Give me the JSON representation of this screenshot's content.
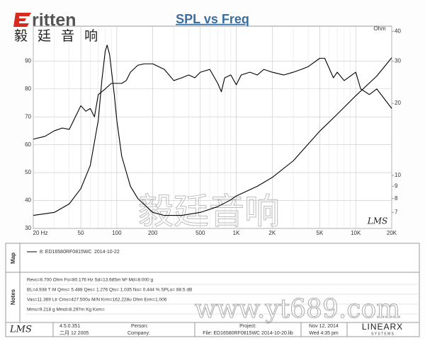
{
  "chart_data": {
    "type": "line",
    "title": "SPL vs Freq",
    "x_scale": "log",
    "y2_scale": "log",
    "xlim": [
      20,
      20000
    ],
    "xticks": [
      {
        "value": 20,
        "label": "20 Hz"
      },
      50,
      100,
      200,
      500,
      {
        "value": 1000,
        "label": "1K"
      },
      {
        "value": 2000,
        "label": "2K"
      },
      {
        "value": 5000,
        "label": "5K"
      },
      {
        "value": 10000,
        "label": "10K"
      },
      {
        "value": 20000,
        "label": "20K"
      }
    ],
    "ylim": [
      30,
      102.5
    ],
    "yticks": [
      30,
      40,
      50,
      60,
      70,
      80,
      90
    ],
    "y2label": "Ohm",
    "y2lim": [
      6,
      42
    ],
    "y2ticks": [
      7,
      8,
      9,
      10,
      20,
      30,
      40
    ],
    "grid": true,
    "series": [
      {
        "name": "8: ED16580RF0815WC",
        "color": "#000000",
        "x": [
          20,
          25,
          30,
          35,
          40,
          45,
          50,
          55,
          60,
          65,
          70,
          80,
          90,
          100,
          110,
          120,
          130,
          150,
          170,
          200,
          250,
          300,
          350,
          400,
          450,
          500,
          600,
          700,
          750,
          800,
          900,
          1000,
          1100,
          1300,
          1500,
          1700,
          2000,
          2500,
          3000,
          3500,
          4000,
          5000,
          5500,
          6500,
          7000,
          8000,
          10000,
          11000,
          13000,
          15000,
          20000
        ],
        "values": [
          62,
          63,
          65,
          66,
          65.5,
          70,
          74,
          72,
          73,
          70,
          78,
          80,
          82,
          82,
          82,
          83,
          86,
          88.5,
          89,
          89,
          87,
          83,
          84,
          85,
          84,
          86,
          87,
          82,
          79,
          84,
          85,
          81.5,
          85,
          86,
          85,
          87,
          86,
          85,
          86,
          87,
          88,
          91,
          91,
          84,
          86,
          83,
          86,
          80,
          78,
          80,
          73
        ]
      },
      {
        "color": "#000000",
        "axis": "y2",
        "x": [
          20,
          30,
          40,
          50,
          60,
          70,
          75,
          80,
          83,
          87,
          95,
          100,
          110,
          130,
          150,
          200,
          250,
          350,
          500,
          700,
          900,
          1000,
          1500,
          2000,
          3000,
          5000,
          7000,
          10000,
          15000,
          20000
        ],
        "values": [
          6.8,
          7.0,
          7.6,
          8.8,
          11,
          17,
          25,
          33,
          35,
          32,
          22,
          17,
          12,
          9,
          8,
          7.0,
          6.8,
          6.8,
          7.0,
          7.4,
          7.9,
          8.2,
          9,
          9.8,
          11.5,
          15.3,
          18,
          21.5,
          26,
          31
        ]
      }
    ]
  },
  "header": {
    "logo": "ritten",
    "logo_cn": "毅 廷 音 响",
    "watermark_cn": "毅廷音响",
    "watermark_url": "www.yt689.com",
    "plot_logo": "LMS"
  },
  "panel": {
    "map_label": "Map",
    "legend_date": "2014-10-22",
    "notes_label": "Notes",
    "notes": [
      "Revc=6.700 Ohm  Fo=80.176 Hz  Sd=13.685m M²  Md=8.000 g",
      "BL=4.938 T·M  Qms= 5.488  Qes= 1.276  Qts= 1.035  No= 0.444 %  SPLo= 88.5 dB",
      "Vas=11.369 Ltr  Cms=427.500u M/N  Krm=162.228u Ohm  Erm=1.006",
      "Mms=9.218 g  Mmd=8.297m Kg  Kxm="
    ],
    "footer": {
      "logo": "LMS",
      "version": "4.5.0.351",
      "build_date": "二月 12 2005",
      "person": "Person:",
      "company": "Company:",
      "project": "Project:",
      "file": "File: ED16580RF0815WC   2014-10-20.lib",
      "date": "Nov 12, 2014",
      "time": "Wed  4:35 pm",
      "brand": "LINEARX",
      "brand_sub": "S Y S T E M S"
    }
  }
}
